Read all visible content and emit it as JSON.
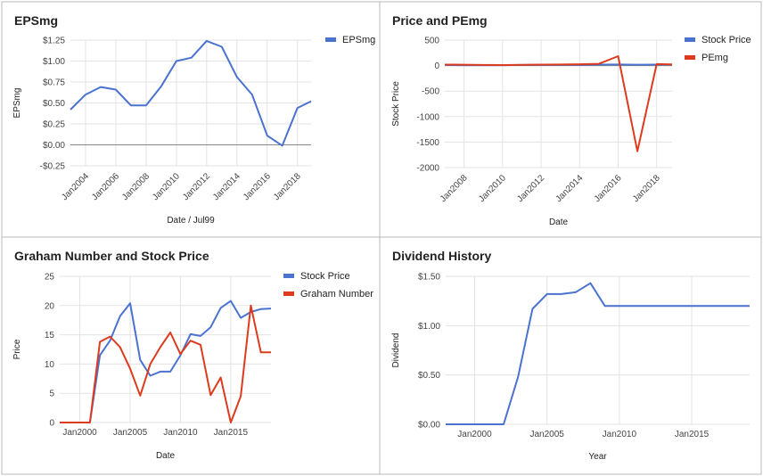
{
  "colors": {
    "blue": "#4a72cf",
    "red": "#dc3b1e",
    "grid": "#e3e3e3",
    "zero": "#888888",
    "border": "#b8b8b8"
  },
  "chart_data": [
    {
      "type": "line",
      "title": "EPSmg",
      "xlabel": "Date / Jul99",
      "ylabel": "EPSmg",
      "x": [
        2003,
        2004,
        2005,
        2006,
        2007,
        2008,
        2009,
        2010,
        2011,
        2012,
        2013,
        2014,
        2015,
        2016,
        2017,
        2018,
        2018.9
      ],
      "series": [
        {
          "name": "EPSmg",
          "values": [
            0.42,
            0.6,
            0.69,
            0.66,
            0.47,
            0.47,
            0.7,
            1.0,
            1.04,
            1.24,
            1.17,
            0.81,
            0.6,
            0.11,
            -0.01,
            0.44,
            0.52
          ]
        }
      ],
      "xlim": [
        2003,
        2018.9
      ],
      "ylim": [
        -0.25,
        1.25
      ],
      "yticks": [
        1.25,
        1.0,
        0.75,
        0.5,
        0.25,
        0.0,
        -0.25
      ],
      "ytick_labels": [
        "$1.25",
        "$1.00",
        "$0.75",
        "$0.50",
        "$0.25",
        "$0.00",
        "-$0.25"
      ],
      "xticks": [
        2004,
        2006,
        2008,
        2010,
        2012,
        2014,
        2016,
        2018
      ],
      "xtick_labels": [
        "Jan2004",
        "Jan2006",
        "Jan2008",
        "Jan2010",
        "Jan2012",
        "Jan2014",
        "Jan2016",
        "Jan2018"
      ],
      "zero_line": true,
      "legend": "right"
    },
    {
      "type": "line",
      "title": "Price and PEmg",
      "xlabel": "Date",
      "ylabel": "Stock Price",
      "x": [
        2007,
        2008,
        2009,
        2010,
        2011,
        2012,
        2013,
        2014,
        2015,
        2016,
        2017,
        2018,
        2018.8
      ],
      "series": [
        {
          "name": "Stock Price",
          "values": [
            10,
            9,
            8,
            8,
            12,
            15,
            15,
            16,
            19,
            21,
            18,
            19,
            19
          ]
        },
        {
          "name": "PEmg",
          "values": [
            20,
            18,
            12,
            10,
            14,
            19,
            21,
            26,
            35,
            185,
            -1680,
            30,
            25
          ]
        }
      ],
      "xlim": [
        2007,
        2018.8
      ],
      "ylim": [
        -2000,
        500
      ],
      "yticks": [
        500,
        0,
        -500,
        -1000,
        -1500,
        -2000
      ],
      "ytick_labels": [
        "500",
        "0",
        "-500",
        "-1000",
        "-1500",
        "-2000"
      ],
      "xticks": [
        2008,
        2010,
        2012,
        2014,
        2016,
        2018
      ],
      "xtick_labels": [
        "Jan2008",
        "Jan2010",
        "Jan2012",
        "Jan2014",
        "Jan2016",
        "Jan2018"
      ],
      "legend": "right"
    },
    {
      "type": "line",
      "title": "Graham Number and Stock Price",
      "xlabel": "Date",
      "ylabel": "Price",
      "x": [
        1998,
        1999,
        2000,
        2001,
        2002,
        2003,
        2004,
        2005,
        2006,
        2007,
        2008,
        2009,
        2010,
        2011,
        2012,
        2013,
        2014,
        2015,
        2016,
        2017,
        2018,
        2019
      ],
      "series": [
        {
          "name": "Stock Price",
          "values": [
            0,
            0,
            0,
            0,
            11.5,
            14,
            18.2,
            20.4,
            10.7,
            8,
            8.7,
            8.7,
            11.5,
            15.1,
            14.8,
            16.3,
            19.6,
            20.8,
            17.9,
            18.9,
            19.4,
            19.5
          ]
        },
        {
          "name": "Graham Number",
          "values": [
            0,
            0,
            0,
            0,
            13.8,
            14.7,
            12.9,
            9.2,
            4.6,
            10,
            12.9,
            15.4,
            11.7,
            14,
            13.3,
            4.7,
            7.7,
            0,
            4.5,
            20,
            12,
            12
          ]
        }
      ],
      "xlim": [
        1998,
        2019
      ],
      "ylim": [
        0,
        25
      ],
      "yticks": [
        25,
        20,
        15,
        10,
        5,
        0
      ],
      "ytick_labels": [
        "25",
        "20",
        "15",
        "10",
        "5",
        "0"
      ],
      "xticks": [
        2000,
        2005,
        2010,
        2015
      ],
      "xtick_labels": [
        "Jan2000",
        "Jan2005",
        "Jan2010",
        "Jan2015"
      ],
      "legend": "right"
    },
    {
      "type": "line",
      "title": "Dividend History",
      "xlabel": "Year",
      "ylabel": "Dividend",
      "x": [
        1998,
        1999,
        2000,
        2001,
        2002,
        2003,
        2004,
        2005,
        2006,
        2007,
        2008,
        2009,
        2010,
        2011,
        2012,
        2013,
        2014,
        2015,
        2016,
        2017,
        2018,
        2019
      ],
      "series": [
        {
          "name": "",
          "values": [
            0,
            0,
            0,
            0,
            0,
            0.48,
            1.17,
            1.32,
            1.32,
            1.34,
            1.43,
            1.2,
            1.2,
            1.2,
            1.2,
            1.2,
            1.2,
            1.2,
            1.2,
            1.2,
            1.2,
            1.2
          ]
        }
      ],
      "xlim": [
        1998,
        2019
      ],
      "ylim": [
        0,
        1.5
      ],
      "yticks": [
        1.5,
        1.0,
        0.5,
        0.0
      ],
      "ytick_labels": [
        "$1.50",
        "$1.00",
        "$0.50",
        "$0.00"
      ],
      "xticks": [
        2000,
        2005,
        2010,
        2015
      ],
      "xtick_labels": [
        "Jan2000",
        "Jan2005",
        "Jan2010",
        "Jan2015"
      ],
      "legend": "none"
    }
  ]
}
